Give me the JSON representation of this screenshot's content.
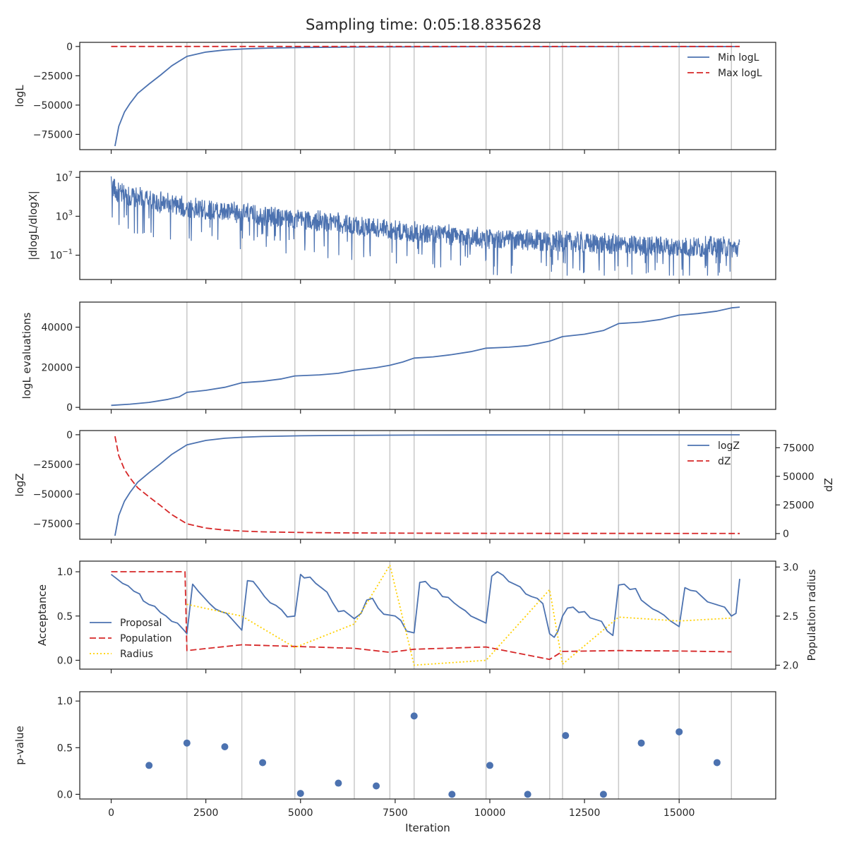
{
  "title": "Sampling time: 0:05:18.835628",
  "colors": {
    "blue": "#4c72b0",
    "red": "#d62728",
    "gold": "#ffd000",
    "vline": "#c8c8c8",
    "axes": "#262626"
  },
  "chart_data": {
    "type": "line",
    "xlabel": "Iteration",
    "xlim": [
      -830,
      17550
    ],
    "xticks": [
      0,
      2500,
      5000,
      7500,
      10000,
      12500,
      15000
    ],
    "xtick_labels": [
      "0",
      "2500",
      "5000",
      "7500",
      "10000",
      "12500",
      "15000"
    ],
    "vlines": [
      2000,
      3450,
      4850,
      6420,
      7360,
      8000,
      9900,
      11580,
      11920,
      13400,
      15000,
      16380
    ],
    "panels": [
      {
        "ylabel": "logL",
        "ylim": [
          -88000,
          3500
        ],
        "yticks": [
          0,
          -25000,
          -50000,
          -75000
        ],
        "ytick_labels": [
          "0",
          "−25000",
          "−50000",
          "−75000"
        ],
        "legend": {
          "placement": "upper right",
          "entries": [
            "Min logL",
            "Max logL"
          ]
        },
        "series": [
          {
            "name": "Min logL",
            "style": "solid",
            "color": "blue",
            "x": [
              100,
              200,
              350,
              500,
              700,
              1000,
              1300,
              1600,
              2000,
              2500,
              3000,
              3500,
              4000,
              5000,
              6000,
              7000,
              8000,
              10000,
              12000,
              14000,
              16600
            ],
            "y": [
              -85000,
              -68000,
              -56000,
              -48500,
              -40000,
              -32000,
              -24500,
              -16500,
              -8500,
              -4800,
              -3000,
              -2100,
              -1500,
              -900,
              -600,
              -400,
              -300,
              -200,
              -150,
              -100,
              -80
            ]
          },
          {
            "name": "Max logL",
            "style": "dashed",
            "color": "red",
            "x": [
              0,
              16600
            ],
            "y": [
              0,
              0
            ]
          }
        ]
      },
      {
        "ylabel": "|dlogL/dlogX|",
        "yscale": "log",
        "ylim_log10": [
          -3.5,
          7.6
        ],
        "yticks_log10": [
          7,
          3,
          -1
        ],
        "ytick_labels": [
          {
            "base": "10",
            "exp": "7"
          },
          {
            "base": "10",
            "exp": "3"
          },
          {
            "base": "10",
            "exp": "−1"
          }
        ],
        "series": [
          {
            "style": "noisy",
            "color": "blue",
            "x": [
              0,
              150,
              2000,
              4000,
              6000,
              8000,
              10000,
              12000,
              14000,
              16600
            ],
            "log10_center": [
              6.5,
              5.3,
              3.8,
              3.0,
              2.2,
              1.3,
              0.6,
              0.3,
              -0.1,
              -0.3
            ],
            "log10_min": [
              -3.1,
              -3.1
            ],
            "log10_max": [
              7.1,
              7.1
            ]
          }
        ]
      },
      {
        "ylabel": "logL evaluations",
        "ylim": [
          -1000,
          52500
        ],
        "yticks": [
          0,
          20000,
          40000
        ],
        "ytick_labels": [
          "0",
          "20000",
          "40000"
        ],
        "series": [
          {
            "style": "solid",
            "color": "blue",
            "x": [
              0,
              500,
              1000,
              1500,
              1800,
              2000,
              2500,
              3000,
              3450,
              4000,
              4500,
              4850,
              5500,
              6000,
              6420,
              7000,
              7360,
              7700,
              8000,
              8500,
              9000,
              9500,
              9900,
              10500,
              11000,
              11580,
              11920,
              12500,
              13000,
              13400,
              14000,
              14500,
              15000,
              15500,
              16000,
              16380,
              16600
            ],
            "y": [
              1000,
              1600,
              2500,
              4000,
              5300,
              7500,
              8500,
              10000,
              12300,
              13000,
              14200,
              15700,
              16200,
              17000,
              18500,
              19800,
              21000,
              22600,
              24600,
              25200,
              26300,
              27800,
              29500,
              30000,
              30800,
              33000,
              35300,
              36500,
              38300,
              41800,
              42500,
              43800,
              46000,
              46800,
              48000,
              49600,
              50000
            ]
          }
        ]
      },
      {
        "ylabel": "logZ",
        "ylabel_right": "dZ",
        "ylim": [
          -88000,
          3500
        ],
        "yticks": [
          0,
          -25000,
          -50000,
          -75000
        ],
        "ytick_labels": [
          "0",
          "−25000",
          "−50000",
          "−75000"
        ],
        "ylim_right": [
          -5000,
          90000
        ],
        "yticks_right": [
          0,
          25000,
          50000,
          75000
        ],
        "ytick_labels_right": [
          "0",
          "25000",
          "50000",
          "75000"
        ],
        "legend": {
          "placement": "upper right",
          "entries": [
            "logZ",
            "dZ"
          ]
        },
        "series": [
          {
            "name": "logZ",
            "style": "solid",
            "color": "blue",
            "axis": "left",
            "x": [
              100,
              200,
              350,
              500,
              700,
              1000,
              1300,
              1600,
              2000,
              2500,
              3000,
              3500,
              4000,
              5000,
              6000,
              7000,
              8000,
              10000,
              12000,
              14000,
              16600
            ],
            "y": [
              -85000,
              -68000,
              -56000,
              -48500,
              -40000,
              -32000,
              -24500,
              -16500,
              -8500,
              -4800,
              -3000,
              -2100,
              -1500,
              -900,
              -600,
              -400,
              -300,
              -200,
              -150,
              -100,
              -80
            ]
          },
          {
            "name": "dZ",
            "style": "dashed",
            "color": "red",
            "axis": "right",
            "x": [
              100,
              200,
              350,
              500,
              700,
              1000,
              1300,
              1600,
              2000,
              2500,
              3000,
              3500,
              4000,
              5000,
              6000,
              7000,
              8000,
              10000,
              12000,
              14000,
              16600
            ],
            "y": [
              85000,
              68000,
              56000,
              48500,
              40000,
              32000,
              24500,
              16500,
              8500,
              4800,
              3000,
              2100,
              1500,
              900,
              600,
              400,
              300,
              200,
              150,
              100,
              80
            ]
          }
        ]
      },
      {
        "ylabel": "Acceptance",
        "ylabel_right": "Population radius",
        "ylim": [
          -0.1,
          1.12
        ],
        "yticks": [
          0.0,
          0.5,
          1.0
        ],
        "ytick_labels": [
          "0.0",
          "0.5",
          "1.0"
        ],
        "ylim_right": [
          1.96,
          3.06
        ],
        "yticks_right": [
          2.0,
          2.5,
          3.0
        ],
        "ytick_labels_right": [
          "2.0",
          "2.5",
          "3.0"
        ],
        "legend": {
          "placement": "lower left",
          "entries": [
            "Proposal",
            "Population",
            "Radius"
          ]
        },
        "series": [
          {
            "name": "Proposal",
            "style": "solid",
            "color": "blue",
            "axis": "left",
            "x": [
              0,
              150,
              300,
              450,
              600,
              750,
              850,
              1000,
              1150,
              1300,
              1450,
              1600,
              1750,
              1900,
              2000,
              2150,
              2300,
              2450,
              2600,
              2750,
              2900,
              3050,
              3200,
              3450,
              3600,
              3750,
              3900,
              4050,
              4200,
              4350,
              4500,
              4650,
              4850,
              5000,
              5100,
              5250,
              5400,
              5550,
              5700,
              5850,
              6000,
              6150,
              6420,
              6600,
              6750,
              6900,
              7050,
              7200,
              7360,
              7500,
              7650,
              7800,
              8000,
              8150,
              8300,
              8450,
              8600,
              8750,
              8900,
              9050,
              9200,
              9350,
              9500,
              9650,
              9900,
              10050,
              10200,
              10350,
              10500,
              10650,
              10800,
              10950,
              11100,
              11250,
              11400,
              11580,
              11700,
              11800,
              11920,
              12050,
              12200,
              12350,
              12500,
              12650,
              12800,
              12950,
              13100,
              13250,
              13400,
              13550,
              13700,
              13850,
              14000,
              14150,
              14300,
              14450,
              14600,
              14750,
              15000,
              15150,
              15300,
              15450,
              15600,
              15750,
              15900,
              16050,
              16200,
              16380,
              16500,
              16600
            ],
            "y": [
              0.97,
              0.92,
              0.87,
              0.84,
              0.78,
              0.75,
              0.67,
              0.63,
              0.61,
              0.54,
              0.5,
              0.44,
              0.42,
              0.35,
              0.3,
              0.86,
              0.78,
              0.71,
              0.64,
              0.58,
              0.55,
              0.53,
              0.46,
              0.34,
              0.9,
              0.89,
              0.81,
              0.72,
              0.65,
              0.62,
              0.57,
              0.49,
              0.5,
              0.97,
              0.93,
              0.94,
              0.87,
              0.82,
              0.77,
              0.65,
              0.55,
              0.56,
              0.47,
              0.53,
              0.68,
              0.7,
              0.59,
              0.52,
              0.51,
              0.5,
              0.45,
              0.33,
              0.31,
              0.88,
              0.89,
              0.82,
              0.8,
              0.72,
              0.71,
              0.65,
              0.6,
              0.56,
              0.5,
              0.47,
              0.42,
              0.95,
              1.0,
              0.96,
              0.89,
              0.86,
              0.83,
              0.75,
              0.72,
              0.7,
              0.64,
              0.3,
              0.26,
              0.33,
              0.5,
              0.59,
              0.6,
              0.54,
              0.55,
              0.48,
              0.46,
              0.44,
              0.33,
              0.28,
              0.85,
              0.86,
              0.8,
              0.81,
              0.68,
              0.63,
              0.58,
              0.55,
              0.51,
              0.45,
              0.38,
              0.82,
              0.79,
              0.78,
              0.72,
              0.66,
              0.64,
              0.62,
              0.6,
              0.5,
              0.53,
              0.92
            ]
          },
          {
            "name": "Population",
            "style": "dashed",
            "color": "red",
            "axis": "left",
            "x": [
              0,
              1950,
              2000,
              3450,
              6420,
              7360,
              8000,
              9900,
              11580,
              11920,
              13400,
              15000,
              16380
            ],
            "y": [
              1.0,
              1.0,
              0.11,
              0.175,
              0.135,
              0.09,
              0.125,
              0.15,
              0.01,
              0.1,
              0.11,
              0.105,
              0.095
            ]
          },
          {
            "name": "Radius",
            "style": "dotted",
            "color": "gold",
            "axis": "right",
            "x": [
              2000,
              3450,
              4850,
              6420,
              7360,
              8000,
              9900,
              11580,
              11920,
              13400,
              15000,
              16380
            ],
            "y": [
              2.62,
              2.5,
              2.18,
              2.42,
              3.02,
              2.0,
              2.05,
              2.77,
              2.01,
              2.49,
              2.45,
              2.48
            ]
          }
        ]
      },
      {
        "ylabel": "p-value",
        "ylim": [
          -0.05,
          1.1
        ],
        "yticks": [
          0.0,
          0.5,
          1.0
        ],
        "ytick_labels": [
          "0.0",
          "0.5",
          "1.0"
        ],
        "series": [
          {
            "style": "points",
            "color": "blue",
            "x": [
              1000,
              2000,
              3000,
              4000,
              5000,
              6000,
              7000,
              8000,
              9000,
              10000,
              11000,
              12000,
              13000,
              14000,
              15000,
              16000
            ],
            "y": [
              0.31,
              0.55,
              0.51,
              0.34,
              0.01,
              0.12,
              0.09,
              0.84,
              0.0,
              0.31,
              0.0,
              0.63,
              0.0,
              0.55,
              0.67,
              0.34
            ]
          }
        ]
      }
    ]
  }
}
